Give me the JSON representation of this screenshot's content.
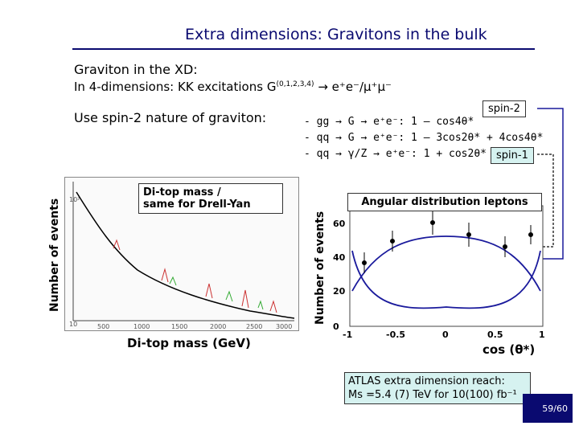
{
  "header": {
    "title": "Extra dimensions: Gravitons in the bulk"
  },
  "bullets": {
    "line1": "Graviton in the XD:",
    "line2_prefix": "In 4-dimensions: KK excitations G",
    "line2_sup": "(0,1,2,3,4)",
    "line2_suffix": " → e⁺e⁻/μ⁺μ⁻",
    "line3": "Use spin-2 nature of graviton:"
  },
  "processes": [
    "- gg → G  → e⁺e⁻: 1 – cos4θ*",
    "- qq → G  → e⁺e⁻: 1 – 3cos2θ* + 4cos4θ*",
    "- qq → γ/Z → e⁺e⁻: 1 + cos2θ*"
  ],
  "tags": {
    "spin2": "spin-2",
    "spin1": "spin-1"
  },
  "left_plot": {
    "ylabel": "Number of events",
    "xlabel": "Di-top mass (GeV)",
    "caption_line1": "Di-top mass /",
    "caption_line2": "same for Drell-Yan",
    "xticks": [
      "500",
      "1000",
      "1500",
      "2000",
      "2500",
      "3000"
    ]
  },
  "right_plot": {
    "ylabel": "Number of events",
    "xlabel": "cos (θ*)",
    "caption": "Angular distribution leptons",
    "yticks": [
      "0",
      "20",
      "40",
      "60"
    ],
    "xticks": [
      "-1",
      "-0.5",
      "0",
      "0.5",
      "1"
    ]
  },
  "atlas": {
    "line1": "ATLAS extra dimension reach:",
    "line2": "Ms =5.4 (7) TeV for 10(100) fb⁻¹"
  },
  "page_number": "59/60",
  "colors": {
    "title": "#0a0a70",
    "arrow": "#1a1a9c",
    "box_bg": "#d6f2f0"
  }
}
